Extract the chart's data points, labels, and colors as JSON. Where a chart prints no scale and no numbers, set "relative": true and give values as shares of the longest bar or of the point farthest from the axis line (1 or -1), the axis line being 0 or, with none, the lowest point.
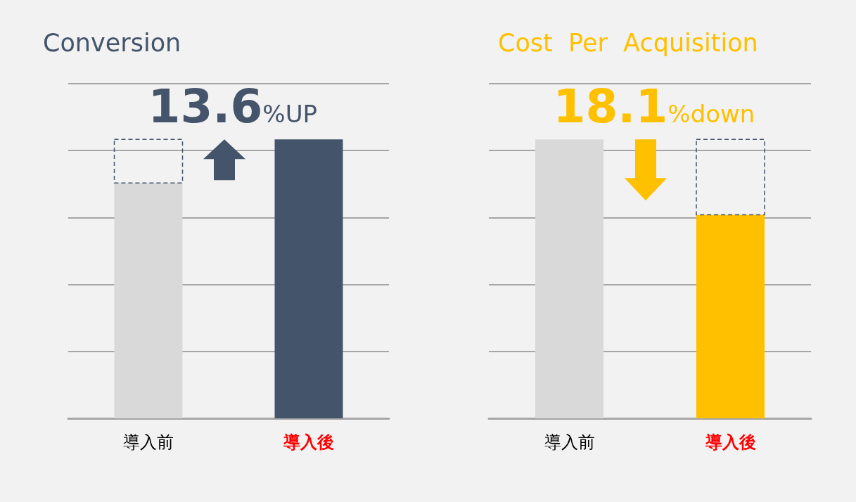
{
  "chart_data": [
    {
      "type": "bar",
      "title": "Conversion",
      "categories": [
        "導入前",
        "導入後"
      ],
      "values": [
        0.844,
        1
      ],
      "colors": [
        "#d9d9d9",
        "#44546a"
      ],
      "relative": true,
      "grid": "y",
      "annotations": [
        "13.6%UP"
      ]
    },
    {
      "type": "bar",
      "title": "Cost  Per  Acquisition",
      "categories": [
        "導入前",
        "導入後"
      ],
      "values": [
        1,
        0.73
      ],
      "colors": [
        "#d9d9d9",
        "#ffc000"
      ],
      "relative": true,
      "grid": "y",
      "annotations": [
        "18.1%down"
      ]
    }
  ]
}
